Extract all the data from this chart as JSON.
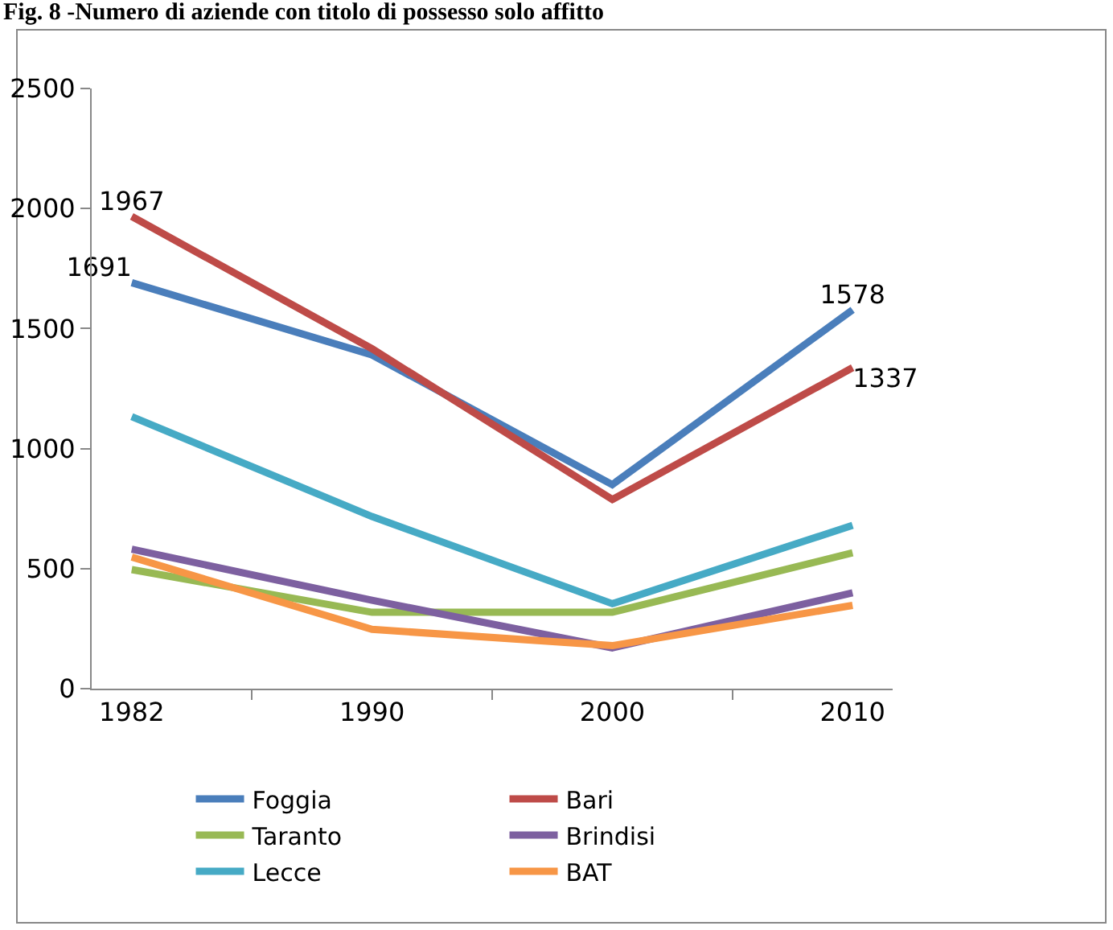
{
  "chart_data": {
    "type": "line",
    "title": "Fig. 8 -Numero di aziende con titolo di possesso solo affitto",
    "categories": [
      "1982",
      "1990",
      "2000",
      "2010"
    ],
    "series": [
      {
        "name": "Foggia",
        "color": "#4a7ebb",
        "values": [
          1691,
          1390,
          850,
          1578
        ],
        "value_labels": [
          "1691",
          null,
          null,
          "1578"
        ]
      },
      {
        "name": "Bari",
        "color": "#be4b48",
        "values": [
          1967,
          1416,
          788,
          1337
        ],
        "value_labels": [
          "1967",
          null,
          null,
          "1337"
        ]
      },
      {
        "name": "Taranto",
        "color": "#98b954",
        "values": [
          496,
          318,
          318,
          566
        ]
      },
      {
        "name": "Brindisi",
        "color": "#7d60a0",
        "values": [
          581,
          368,
          170,
          399
        ]
      },
      {
        "name": "Lecce",
        "color": "#46aac5",
        "values": [
          1133,
          717,
          354,
          680
        ]
      },
      {
        "name": "BAT",
        "color": "#f79646",
        "values": [
          548,
          247,
          179,
          347
        ]
      }
    ],
    "ylim": [
      0,
      2500
    ],
    "yticks": [
      0,
      500,
      1000,
      1500,
      2000,
      2500
    ],
    "grid": false,
    "legend": "bottom",
    "marker": "none",
    "line_style": "solid"
  }
}
